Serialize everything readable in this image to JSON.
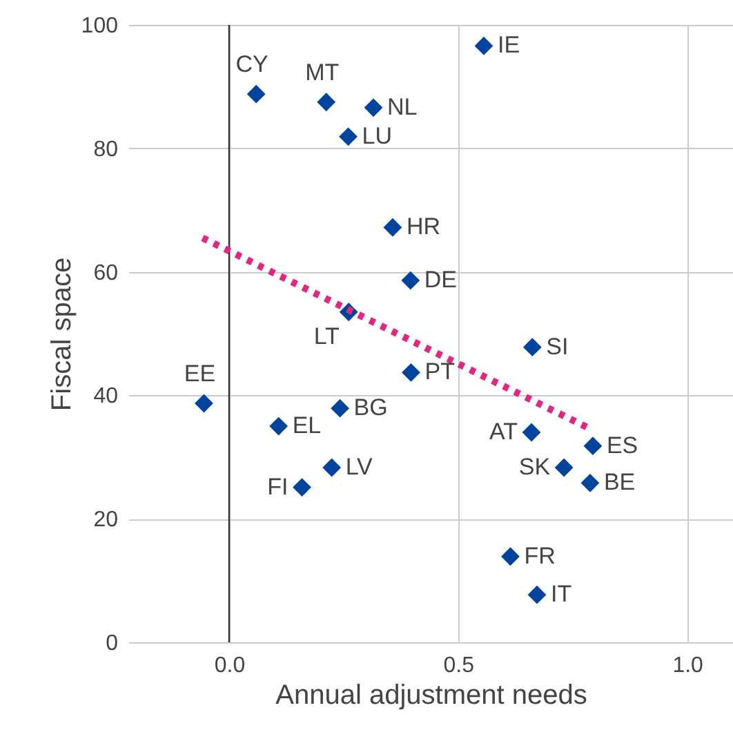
{
  "chart_data": {
    "type": "scatter",
    "xlabel": "Annual adjustment needs",
    "ylabel": "Fiscal space",
    "xlim": [
      -0.22,
      1.1
    ],
    "xticks": [
      {
        "value": 0,
        "label": "0.0"
      },
      0.5,
      {
        "value": 1,
        "label": "1.0"
      }
    ],
    "ylim": [
      0,
      100
    ],
    "yticks": [
      0,
      20,
      40,
      60,
      80,
      100
    ],
    "grid": true,
    "series": [
      {
        "marker": "diamond",
        "color": "#00449e",
        "x": [
          0.059,
          0.212,
          0.315,
          0.26,
          0.556,
          0.357,
          0.396,
          0.261,
          0.662,
          0.397,
          -0.055,
          0.108,
          0.242,
          0.66,
          0.794,
          0.731,
          0.788,
          0.224,
          0.159,
          0.614,
          0.672
        ],
        "values": [
          88.8,
          87.5,
          86.6,
          81.9,
          96.6,
          67.2,
          58.6,
          53.5,
          47.8,
          43.7,
          38.7,
          35.0,
          37.9,
          34.0,
          31.8,
          28.3,
          25.8,
          28.3,
          25.1,
          13.9,
          7.7
        ]
      },
      {
        "type": "line",
        "color": "#e3267f",
        "line_style": "dotted",
        "x": [
          -0.058,
          0.793
        ],
        "values": [
          65.5,
          34.4
        ]
      }
    ],
    "ref_lines": [
      {
        "axis": "x",
        "value": 0,
        "color": "#333333"
      }
    ],
    "annotations": [
      {
        "text": "CY",
        "x": 0.059,
        "y": 88.8
      },
      {
        "text": "MT",
        "x": 0.212,
        "y": 87.5
      },
      {
        "text": "NL",
        "x": 0.315,
        "y": 86.6
      },
      {
        "text": "LU",
        "x": 0.26,
        "y": 81.9
      },
      {
        "text": "IE",
        "x": 0.556,
        "y": 96.6
      },
      {
        "text": "HR",
        "x": 0.357,
        "y": 67.2
      },
      {
        "text": "DE",
        "x": 0.396,
        "y": 58.6
      },
      {
        "text": "LT",
        "x": 0.261,
        "y": 53.5
      },
      {
        "text": "SI",
        "x": 0.662,
        "y": 47.8
      },
      {
        "text": "PT",
        "x": 0.397,
        "y": 43.7
      },
      {
        "text": "EE",
        "x": -0.055,
        "y": 38.7
      },
      {
        "text": "EL",
        "x": 0.108,
        "y": 35.0
      },
      {
        "text": "BG",
        "x": 0.242,
        "y": 37.9
      },
      {
        "text": "AT",
        "x": 0.66,
        "y": 34.0
      },
      {
        "text": "ES",
        "x": 0.794,
        "y": 31.8
      },
      {
        "text": "SK",
        "x": 0.731,
        "y": 28.3
      },
      {
        "text": "BE",
        "x": 0.788,
        "y": 25.8
      },
      {
        "text": "LV",
        "x": 0.224,
        "y": 28.3
      },
      {
        "text": "FI",
        "x": 0.159,
        "y": 25.1
      },
      {
        "text": "FR",
        "x": 0.614,
        "y": 13.9
      },
      {
        "text": "IT",
        "x": 0.672,
        "y": 7.7
      }
    ]
  }
}
